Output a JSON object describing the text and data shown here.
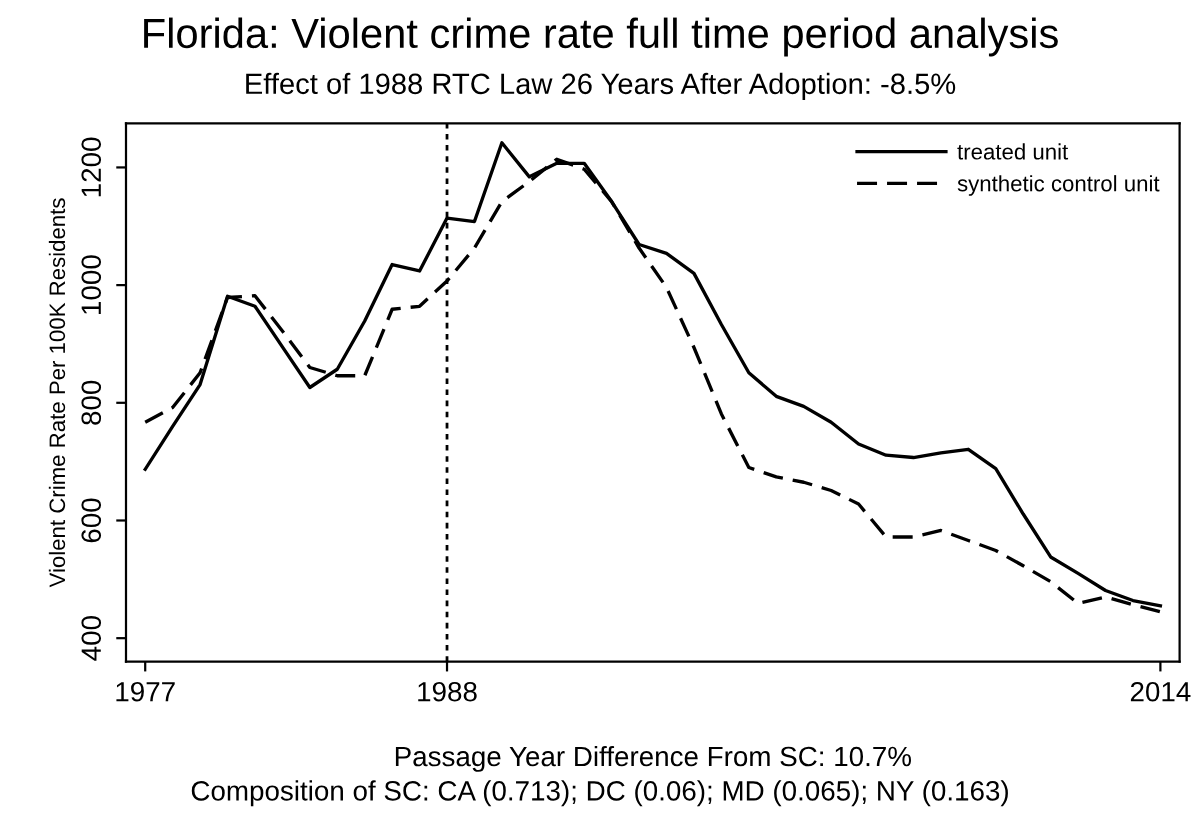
{
  "chart_data": {
    "type": "line",
    "title": "Florida: Violent crime rate full time period analysis",
    "subtitle": "Effect of 1988 RTC Law 26 Years After Adoption: -8.5%",
    "ylabel": "Violent Crime Rate Per 100K Residents",
    "xlabel": "Passage Year Difference From SC: 10.7%",
    "annotations": [
      "Composition of SC: CA (0.713); DC (0.06); MD (0.065); NY (0.163)"
    ],
    "x": [
      1977,
      1978,
      1979,
      1980,
      1981,
      1982,
      1983,
      1984,
      1985,
      1986,
      1987,
      1988,
      1989,
      1990,
      1991,
      1992,
      1993,
      1994,
      1995,
      1996,
      1997,
      1998,
      1999,
      2000,
      2001,
      2002,
      2003,
      2004,
      2005,
      2006,
      2007,
      2008,
      2009,
      2010,
      2011,
      2012,
      2013,
      2014
    ],
    "series": [
      {
        "name": "treated unit",
        "color": "#000000",
        "line_style": "solid",
        "values": [
          687,
          760,
          831,
          981,
          964,
          895,
          826,
          857,
          939,
          1035,
          1024,
          1114,
          1108,
          1242,
          1184,
          1207,
          1207,
          1142,
          1069,
          1054,
          1020,
          933,
          851,
          811,
          794,
          767,
          730,
          711,
          707,
          715,
          721,
          688,
          611,
          538,
          510,
          481,
          464,
          455
        ]
      },
      {
        "name": "synthetic control unit",
        "color": "#000000",
        "line_style": "dashed",
        "values": [
          767,
          792,
          851,
          979,
          982,
          922,
          860,
          846,
          846,
          959,
          964,
          1007,
          1063,
          1142,
          1176,
          1214,
          1197,
          1142,
          1063,
          996,
          894,
          781,
          690,
          674,
          665,
          651,
          628,
          572,
          572,
          583,
          566,
          549,
          523,
          496,
          459,
          470,
          457,
          445
        ]
      }
    ],
    "xlim": [
      1976.3,
      2014.7
    ],
    "ylim": [
      360,
      1275
    ],
    "xticks": [
      1977,
      1988,
      2014
    ],
    "yticks": [
      400,
      600,
      800,
      1000,
      1200
    ],
    "ref_lines": [
      {
        "axis": "x",
        "value": 1988,
        "label": null,
        "line_style": "dotted",
        "color": "#000000"
      }
    ],
    "grid": false,
    "legend": "top right"
  }
}
